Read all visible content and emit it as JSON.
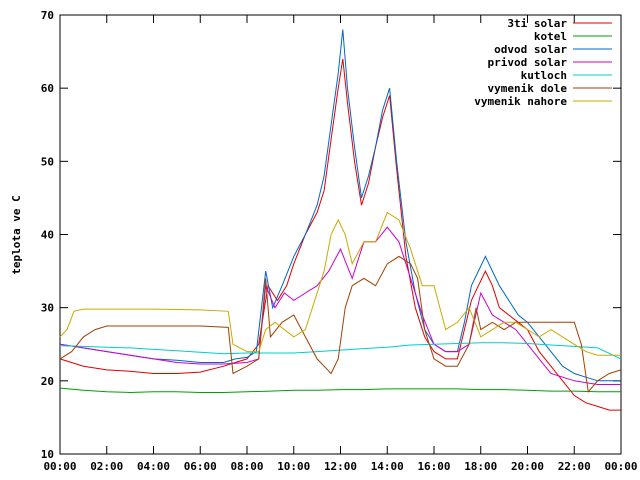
{
  "chart_data": {
    "type": "line",
    "title": "",
    "xlabel": "",
    "ylabel": "teplota ve C",
    "xlim": [
      0,
      24
    ],
    "ylim": [
      10,
      70
    ],
    "x_ticks": [
      "00:00",
      "02:00",
      "04:00",
      "06:00",
      "08:00",
      "10:00",
      "12:00",
      "14:00",
      "16:00",
      "18:00",
      "20:00",
      "22:00",
      "00:00"
    ],
    "y_ticks": [
      10,
      20,
      30,
      40,
      50,
      60,
      70
    ],
    "grid": false,
    "legend": "top-right",
    "series": [
      {
        "name": "3ti solar",
        "color": "#e00000",
        "x": [
          0,
          1,
          2,
          3,
          4,
          5,
          6,
          7,
          7.5,
          8,
          8.5,
          8.9,
          9.3,
          9.7,
          10,
          10.5,
          11,
          11.3,
          11.6,
          11.9,
          12.1,
          12.3,
          12.6,
          12.9,
          13.2,
          13.5,
          13.8,
          14.1,
          14.4,
          14.8,
          15.2,
          15.6,
          16,
          16.5,
          17,
          17.3,
          17.6,
          17.9,
          18.2,
          18.5,
          18.8,
          19.2,
          19.6,
          20,
          20.5,
          21,
          21.5,
          22,
          22.5,
          23,
          23.5,
          24
        ],
        "y": [
          23,
          22,
          21.5,
          21.3,
          21,
          21,
          21.2,
          22,
          22.5,
          23,
          25,
          33,
          31,
          33,
          36,
          40,
          43,
          46,
          53,
          60,
          64,
          58,
          50,
          44,
          47,
          52,
          56,
          59,
          49,
          37,
          30,
          26,
          24,
          23,
          23,
          27,
          31,
          33,
          35,
          33,
          30,
          29,
          28,
          27,
          24,
          22,
          20,
          18,
          17,
          16.5,
          16,
          16
        ]
      },
      {
        "name": "kotel",
        "color": "#00a000",
        "x": [
          0,
          1,
          2,
          3,
          4,
          5,
          6,
          7,
          8,
          9,
          10,
          11,
          12,
          13,
          14,
          15,
          16,
          17,
          18,
          19,
          20,
          21,
          22,
          23,
          24
        ],
        "y": [
          19,
          18.7,
          18.5,
          18.4,
          18.5,
          18.5,
          18.4,
          18.4,
          18.5,
          18.6,
          18.7,
          18.7,
          18.8,
          18.8,
          18.9,
          18.9,
          18.9,
          18.9,
          18.8,
          18.8,
          18.7,
          18.6,
          18.6,
          18.5,
          18.5
        ]
      },
      {
        "name": "odvod solar",
        "color": "#0066cc",
        "x": [
          0,
          1,
          2,
          3,
          4,
          5,
          6,
          7,
          7.5,
          8,
          8.4,
          8.8,
          9.1,
          9.5,
          10,
          10.5,
          11,
          11.3,
          11.6,
          11.9,
          12.1,
          12.3,
          12.6,
          12.9,
          13.2,
          13.5,
          13.8,
          14.1,
          14.4,
          14.8,
          15.2,
          15.6,
          16,
          16.5,
          17,
          17.3,
          17.6,
          17.9,
          18.2,
          18.5,
          18.8,
          19.2,
          19.6,
          20,
          20.5,
          21,
          21.5,
          22,
          22.5,
          23,
          23.5,
          24
        ],
        "y": [
          25,
          24.5,
          24,
          23.5,
          23,
          22.8,
          22.5,
          22.5,
          23,
          23.2,
          24,
          35,
          30,
          33,
          37,
          40,
          44,
          48,
          55,
          62,
          68,
          60,
          52,
          45,
          48,
          52,
          57,
          60,
          50,
          39,
          32,
          27,
          25,
          24,
          24,
          28,
          33,
          35,
          37,
          35,
          33,
          31,
          29,
          28,
          26,
          24,
          22,
          21,
          20.5,
          20,
          20,
          20
        ]
      },
      {
        "name": "privod solar",
        "color": "#cc00cc",
        "x": [
          0,
          1,
          2,
          3,
          4,
          5,
          6,
          7,
          8,
          8.5,
          8.8,
          9.2,
          9.6,
          10,
          10.5,
          11,
          11.5,
          12,
          12.5,
          13,
          13.5,
          14,
          14.5,
          15,
          15.5,
          16,
          16.5,
          17,
          17.5,
          18,
          18.5,
          19,
          19.5,
          20,
          20.5,
          21,
          22,
          23,
          24
        ],
        "y": [
          25,
          24.5,
          24,
          23.5,
          23,
          22.5,
          22.3,
          22.3,
          22.5,
          23,
          33,
          30,
          32,
          31,
          32,
          33,
          35,
          38,
          34,
          39,
          39,
          41,
          39,
          34,
          29,
          25,
          24,
          24,
          25,
          32,
          29,
          28,
          27,
          25,
          23,
          21,
          20,
          19.5,
          19.5
        ]
      },
      {
        "name": "kutloch",
        "color": "#00cccc",
        "x": [
          0,
          1,
          2,
          3,
          4,
          5,
          6,
          7,
          8,
          9,
          10,
          11,
          12,
          13,
          14,
          15,
          16,
          17,
          18,
          19,
          20,
          21,
          22,
          23,
          24
        ],
        "y": [
          24.8,
          24.7,
          24.6,
          24.5,
          24.3,
          24.1,
          23.9,
          23.7,
          23.8,
          23.8,
          23.8,
          24,
          24.2,
          24.4,
          24.6,
          24.9,
          25,
          25.1,
          25.2,
          25.2,
          25.1,
          24.9,
          24.7,
          24.5,
          23
        ]
      },
      {
        "name": "vymenik dole",
        "color": "#a04000",
        "x": [
          0,
          0.5,
          1,
          1.5,
          2,
          4,
          6,
          7.2,
          7.4,
          8,
          8.5,
          8.8,
          9,
          9.5,
          10,
          10.5,
          11,
          11.3,
          11.6,
          11.9,
          12.2,
          12.5,
          13,
          13.5,
          14,
          14.5,
          15,
          15.3,
          15.6,
          16,
          16.5,
          17,
          17.5,
          17.8,
          18,
          18.5,
          19,
          19.5,
          20,
          20.5,
          21,
          21.5,
          22,
          22.3,
          22.6,
          23,
          23.5,
          24
        ],
        "y": [
          23,
          24,
          26,
          27,
          27.5,
          27.5,
          27.5,
          27.3,
          21,
          22,
          23,
          34,
          26,
          28,
          29,
          26,
          23,
          22,
          21,
          23,
          30,
          33,
          34,
          33,
          36,
          37,
          36,
          34,
          27,
          23,
          22,
          22,
          25,
          30,
          27,
          28,
          27,
          28,
          28,
          28,
          28,
          28,
          28,
          25,
          18.5,
          20,
          21,
          21.5
        ]
      },
      {
        "name": "vymenik nahore",
        "color": "#c8aa00",
        "x": [
          0,
          0.3,
          0.6,
          1,
          2,
          4,
          6,
          7.2,
          7.4,
          8,
          8.5,
          8.8,
          9.2,
          9.6,
          10,
          10.5,
          11,
          11.3,
          11.6,
          11.9,
          12.2,
          12.5,
          13,
          13.5,
          14,
          14.5,
          15,
          15.5,
          16,
          16.5,
          17,
          17.5,
          18,
          18.5,
          19,
          19.5,
          20,
          20.5,
          21,
          21.5,
          22,
          22.5,
          23,
          23.5,
          24
        ],
        "y": [
          26,
          27,
          29.5,
          29.8,
          29.8,
          29.8,
          29.7,
          29.5,
          25,
          24,
          24,
          27,
          28,
          27,
          26,
          27,
          32,
          35,
          40,
          42,
          40,
          36,
          39,
          39,
          43,
          42,
          38,
          33,
          33,
          27,
          28,
          30,
          26,
          27,
          28,
          28,
          27,
          26,
          27,
          26,
          25,
          24,
          23.5,
          23.5,
          23.5
        ]
      }
    ]
  }
}
